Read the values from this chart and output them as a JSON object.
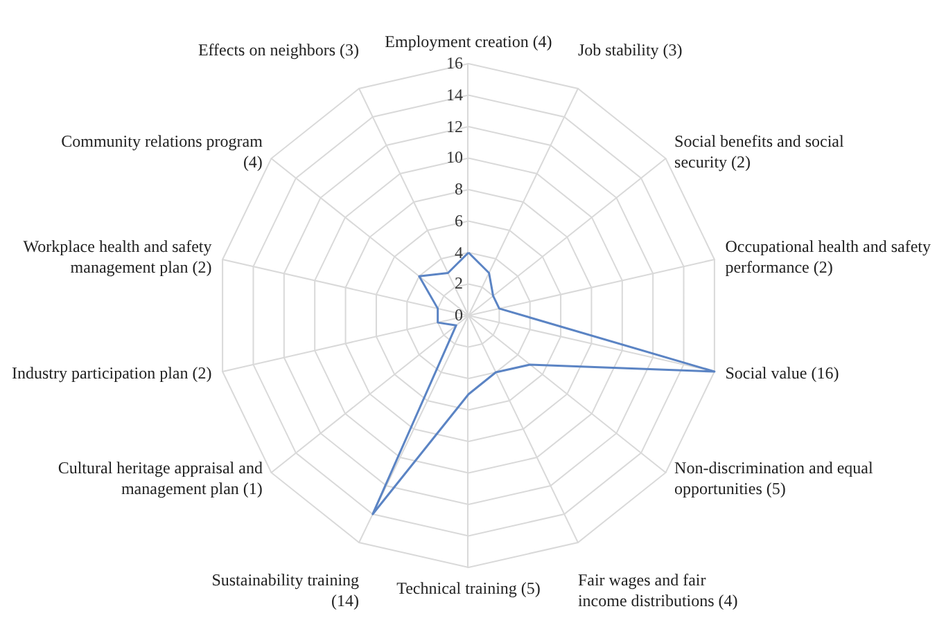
{
  "chart_data": {
    "type": "radar",
    "categories": [
      "Employment creation (4)",
      "Job stability (3)",
      "Social benefits and social security (2)",
      "Occupational health and safety performance (2)",
      "Social value (16)",
      "Non-discrimination and equal opportunities (5)",
      "Fair wages and fair income distributions (4)",
      "Technical training (5)",
      "Sustainability training (14)",
      "Cultural heritage appraisal and management plan (1)",
      "Industry participation plan (2)",
      "Workplace health and safety management plan (2)",
      "Community relations program (4)",
      "Effects on neighbors (3)"
    ],
    "series": [
      {
        "color": "#5b84c4",
        "values": [
          4,
          3,
          2,
          2,
          16,
          5,
          4,
          5,
          14,
          1,
          2,
          2,
          4,
          3
        ]
      }
    ],
    "ylim": [
      0,
      16
    ],
    "yticks": [
      0,
      2,
      4,
      6,
      8,
      10,
      12,
      14,
      16
    ],
    "marker": "none",
    "line_style": "solid"
  }
}
